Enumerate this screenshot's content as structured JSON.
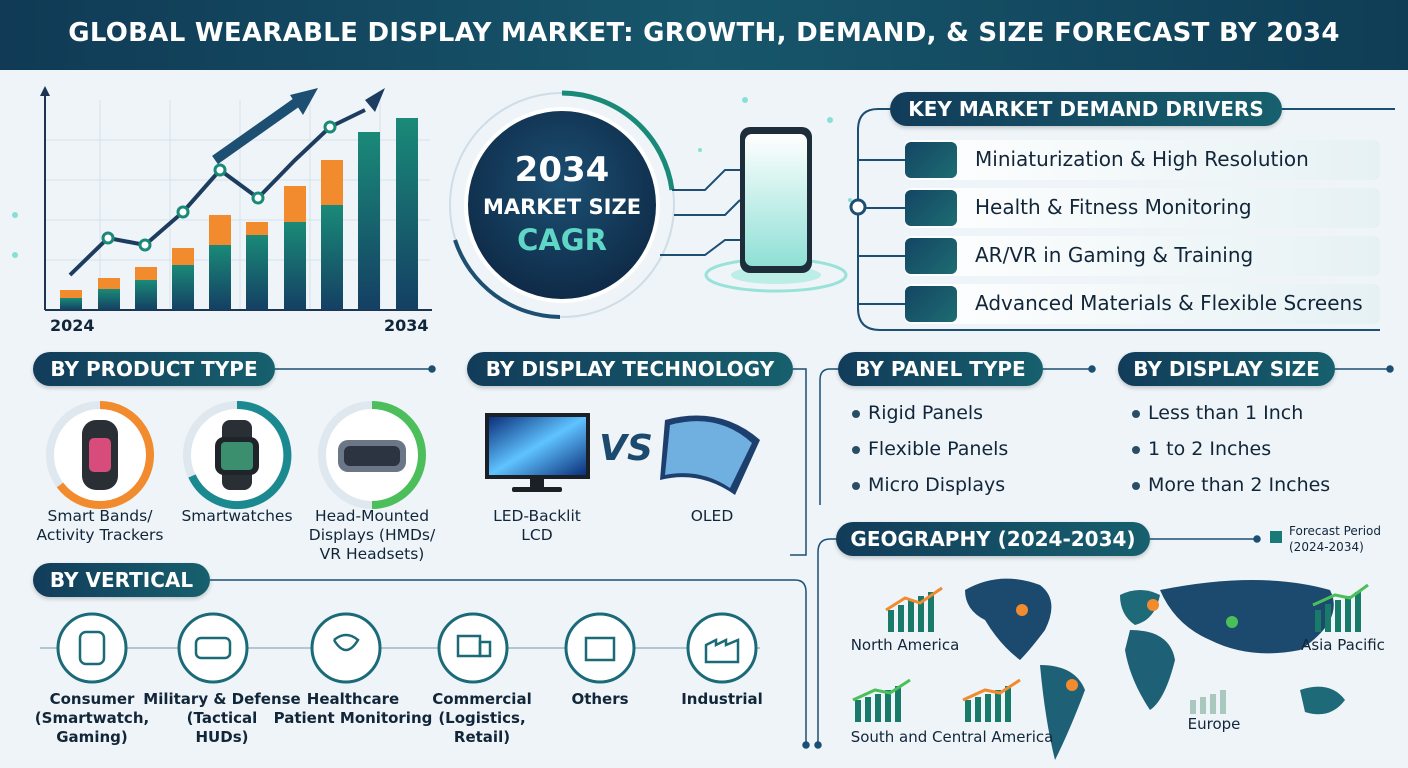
{
  "header": {
    "title": "GLOBAL WEARABLE DISPLAY MARKET: GROWTH, DEMAND, & SIZE FORECAST BY 2034"
  },
  "hero": {
    "chart_start": "2024",
    "chart_end": "2034",
    "circle": [
      "2034",
      "MARKET SIZE",
      "CAGR"
    ]
  },
  "drivers": {
    "title": "KEY MARKET DEMAND DRIVERS",
    "items": [
      "Miniaturization & High Resolution",
      "Health & Fitness Monitoring",
      "AR/VR in Gaming & Training",
      "Advanced Materials & Flexible Screens"
    ]
  },
  "product_type": {
    "title": "BY PRODUCT TYPE",
    "items": [
      [
        "Smart Bands/",
        "Activity Trackers"
      ],
      [
        "Smartwatches"
      ],
      [
        "Head-Mounted",
        "Displays (HMDs/",
        "VR Headsets)"
      ]
    ]
  },
  "display_technology": {
    "title": "BY DISPLAY TECHNOLOGY",
    "vs": "VS",
    "items": [
      [
        "LED-Backlit",
        "LCD"
      ],
      [
        "OLED"
      ]
    ]
  },
  "panel_type": {
    "title": "BY PANEL TYPE",
    "items": [
      "Rigid Panels",
      "Flexible Panels",
      "Micro Displays"
    ]
  },
  "display_size": {
    "title": "BY DISPLAY SIZE",
    "items": [
      "Less than 1 Inch",
      "1 to 2 Inches",
      "More than 2 Inches"
    ]
  },
  "vertical": {
    "title": "BY VERTICAL",
    "items": [
      [
        "Consumer",
        "(Smartwatch,",
        "Gaming)"
      ],
      [
        "Military & Defense",
        "(Tactical",
        "HUDs)"
      ],
      [
        "Healthcare",
        "Patient Monitoring"
      ],
      [
        "Commercial",
        "(Logistics,",
        "Retail)"
      ],
      [
        "Others"
      ],
      [
        "Industrial"
      ]
    ]
  },
  "geography": {
    "title": "GEOGRAPHY (2024-2034)",
    "legend": [
      "Forecast Period",
      "(2024-2034)"
    ],
    "regions": [
      "North America",
      "Asia Pacific",
      "South and Central America",
      "Europe"
    ]
  }
}
